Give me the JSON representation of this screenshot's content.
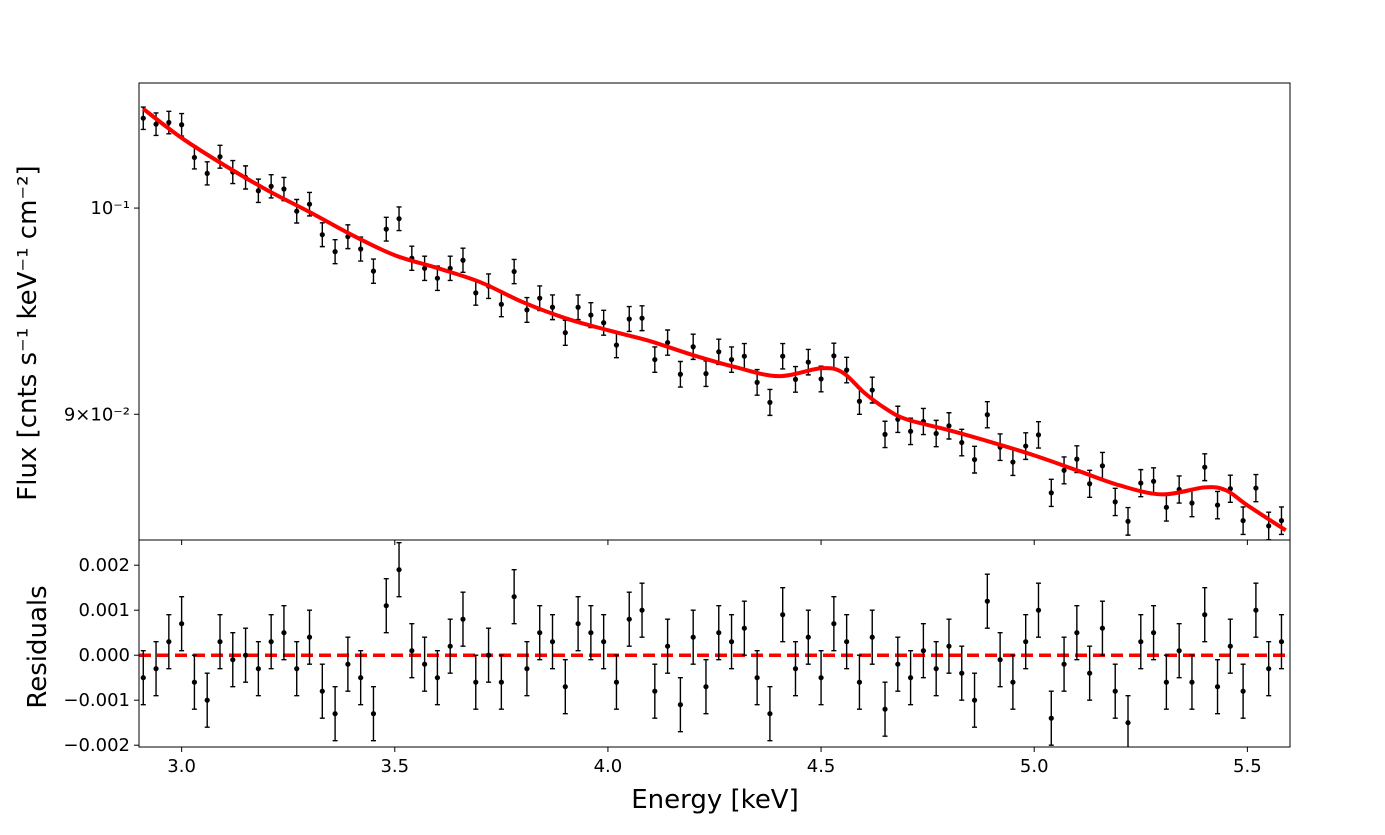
{
  "chart_data": [
    {
      "type": "scatter",
      "log_y": true,
      "ylabel": "Flux [cnts s⁻¹ keV⁻¹ cm⁻²]",
      "xlim": [
        2.9,
        5.6
      ],
      "ylim": [
        0.0844,
        0.1066
      ],
      "xticks": [
        3,
        3.5,
        4,
        4.5,
        5,
        5.5
      ],
      "yticks": [
        {
          "value": 0.1,
          "label": "10⁻¹"
        },
        {
          "value": 0.09,
          "label": "9×10⁻²"
        }
      ],
      "series": [
        {
          "color": "#000000",
          "error": 0.0006,
          "x": [
            2.91,
            2.94,
            2.97,
            3.0,
            3.03,
            3.06,
            3.09,
            3.12,
            3.15,
            3.18,
            3.21,
            3.24,
            3.27,
            3.3,
            3.33,
            3.36,
            3.39,
            3.42,
            3.45,
            3.48,
            3.51,
            3.54,
            3.57,
            3.6,
            3.63,
            3.66,
            3.69,
            3.72,
            3.75,
            3.78,
            3.81,
            3.84,
            3.87,
            3.9,
            3.93,
            3.96,
            3.99,
            4.02,
            4.05,
            4.08,
            4.11,
            4.14,
            4.17,
            4.2,
            4.23,
            4.26,
            4.29,
            4.32,
            4.35,
            4.38,
            4.41,
            4.44,
            4.47,
            4.5,
            4.53,
            4.56,
            4.59,
            4.62,
            4.65,
            4.68,
            4.71,
            4.74,
            4.77,
            4.8,
            4.83,
            4.86,
            4.89,
            4.92,
            4.95,
            4.98,
            5.01,
            5.04,
            5.07,
            5.1,
            5.13,
            5.16,
            5.19,
            5.22,
            5.25,
            5.28,
            5.31,
            5.34,
            5.37,
            5.4,
            5.43,
            5.46,
            5.49,
            5.52,
            5.55,
            5.58
          ],
          "values": [
            0.1047,
            0.10438,
            0.10447,
            0.10435,
            0.10262,
            0.10179,
            0.10266,
            0.10186,
            0.10158,
            0.10089,
            0.10112,
            0.10098,
            0.09984,
            0.1002,
            0.09865,
            0.0978,
            0.09855,
            0.09793,
            0.09683,
            0.09893,
            0.09946,
            0.09747,
            0.09697,
            0.09648,
            0.09697,
            0.09737,
            0.09576,
            0.09609,
            0.0952,
            0.09681,
            0.09493,
            0.0955,
            0.09506,
            0.09383,
            0.09506,
            0.09468,
            0.09431,
            0.09324,
            0.09449,
            0.09453,
            0.09255,
            0.09336,
            0.09186,
            0.09316,
            0.09189,
            0.09292,
            0.09255,
            0.09271,
            0.09148,
            0.09055,
            0.09271,
            0.09162,
            0.09243,
            0.09164,
            0.09273,
            0.09206,
            0.0906,
            0.09112,
            0.08908,
            0.08977,
            0.08922,
            0.08967,
            0.08912,
            0.08947,
            0.08871,
            0.08794,
            0.08998,
            0.0885,
            0.08783,
            0.08855,
            0.08906,
            0.08646,
            0.08746,
            0.08796,
            0.08686,
            0.08766,
            0.08606,
            0.08521,
            0.08689,
            0.08697,
            0.08582,
            0.08661,
            0.08601,
            0.0876,
            0.08592,
            0.08664,
            0.08524,
            0.08667,
            0.08501,
            0.08524
          ]
        },
        {
          "type": "line",
          "color": "#ff0000",
          "x": [
            2.91,
            3.0,
            3.1,
            3.2,
            3.3,
            3.4,
            3.5,
            3.6,
            3.7,
            3.8,
            3.9,
            4.0,
            4.1,
            4.2,
            4.3,
            4.4,
            4.5,
            4.55,
            4.6,
            4.65,
            4.7,
            4.8,
            4.9,
            5.0,
            5.1,
            5.2,
            5.3,
            5.4,
            5.45,
            5.5,
            5.59
          ],
          "values": [
            0.1052,
            0.10365,
            0.10222,
            0.10093,
            0.0998,
            0.09863,
            0.09762,
            0.09698,
            0.09629,
            0.09531,
            0.09453,
            0.09395,
            0.09342,
            0.09276,
            0.09219,
            0.09177,
            0.09214,
            0.09195,
            0.09102,
            0.09028,
            0.08977,
            0.08927,
            0.08872,
            0.08813,
            0.08746,
            0.08679,
            0.08639,
            0.0867,
            0.08657,
            0.08591,
            0.08482
          ]
        }
      ]
    },
    {
      "type": "scatter",
      "ylabel": "Residuals",
      "xlabel": "Energy [keV]",
      "xlim": [
        2.9,
        5.6
      ],
      "ylim": [
        -0.00204,
        0.00256
      ],
      "xticks": [
        {
          "value": 3,
          "label": "3.0"
        },
        {
          "value": 3.5,
          "label": "3.5"
        },
        {
          "value": 4,
          "label": "4.0"
        },
        {
          "value": 4.5,
          "label": "4.5"
        },
        {
          "value": 5,
          "label": "5.0"
        },
        {
          "value": 5.5,
          "label": "5.5"
        }
      ],
      "yticks": [
        {
          "value": -0.002,
          "label": "−0.002"
        },
        {
          "value": -0.001,
          "label": "−0.001"
        },
        {
          "value": 0,
          "label": "0.000"
        },
        0.001,
        0.002
      ],
      "reference_line": {
        "value": 0,
        "color": "#ff0000"
      },
      "series": [
        {
          "color": "#000000",
          "error": 0.0006,
          "x": [
            2.91,
            2.94,
            2.97,
            3.0,
            3.03,
            3.06,
            3.09,
            3.12,
            3.15,
            3.18,
            3.21,
            3.24,
            3.27,
            3.3,
            3.33,
            3.36,
            3.39,
            3.42,
            3.45,
            3.48,
            3.51,
            3.54,
            3.57,
            3.6,
            3.63,
            3.66,
            3.69,
            3.72,
            3.75,
            3.78,
            3.81,
            3.84,
            3.87,
            3.9,
            3.93,
            3.96,
            3.99,
            4.02,
            4.05,
            4.08,
            4.11,
            4.14,
            4.17,
            4.2,
            4.23,
            4.26,
            4.29,
            4.32,
            4.35,
            4.38,
            4.41,
            4.44,
            4.47,
            4.5,
            4.53,
            4.56,
            4.59,
            4.62,
            4.65,
            4.68,
            4.71,
            4.74,
            4.77,
            4.8,
            4.83,
            4.86,
            4.89,
            4.92,
            4.95,
            4.98,
            5.01,
            5.04,
            5.07,
            5.1,
            5.13,
            5.16,
            5.19,
            5.22,
            5.25,
            5.28,
            5.31,
            5.34,
            5.37,
            5.4,
            5.43,
            5.46,
            5.49,
            5.52,
            5.55,
            5.58
          ],
          "values": [
            -0.0005,
            -0.0003,
            0.0003,
            0.0007,
            -0.0006,
            -0.001,
            0.0003,
            -0.0001,
            0,
            -0.0003,
            0.0003,
            0.0005,
            -0.0003,
            0.0004,
            -0.0008,
            -0.0013,
            -0.0002,
            -0.0005,
            -0.0013,
            0.0011,
            0.0019,
            0.0001,
            -0.0002,
            -0.0005,
            0.0002,
            0.0008,
            -0.0006,
            0,
            -0.0006,
            0.0013,
            -0.0003,
            0.0005,
            0.0003,
            -0.0007,
            0.0007,
            0.0005,
            0.0003,
            -0.0006,
            0.0008,
            0.001,
            -0.0008,
            0.0002,
            -0.0011,
            0.0004,
            -0.0007,
            0.0005,
            0.0003,
            0.0006,
            -0.0005,
            -0.0013,
            0.0009,
            -0.0003,
            0.0004,
            -0.0005,
            0.0007,
            0.0003,
            -0.0006,
            0.0004,
            -0.0012,
            -0.0002,
            -0.0005,
            0.0001,
            -0.0003,
            0.0002,
            -0.0004,
            -0.001,
            0.0012,
            -0.0001,
            -0.0006,
            0.0003,
            0.001,
            -0.0014,
            -0.0002,
            0.0005,
            -0.0004,
            0.0006,
            -0.0008,
            -0.0015,
            0.0003,
            0.0005,
            -0.0006,
            0.0001,
            -0.0006,
            0.0009,
            -0.0007,
            0.0002,
            -0.0008,
            0.001,
            -0.0003,
            0.0003
          ]
        }
      ]
    }
  ]
}
